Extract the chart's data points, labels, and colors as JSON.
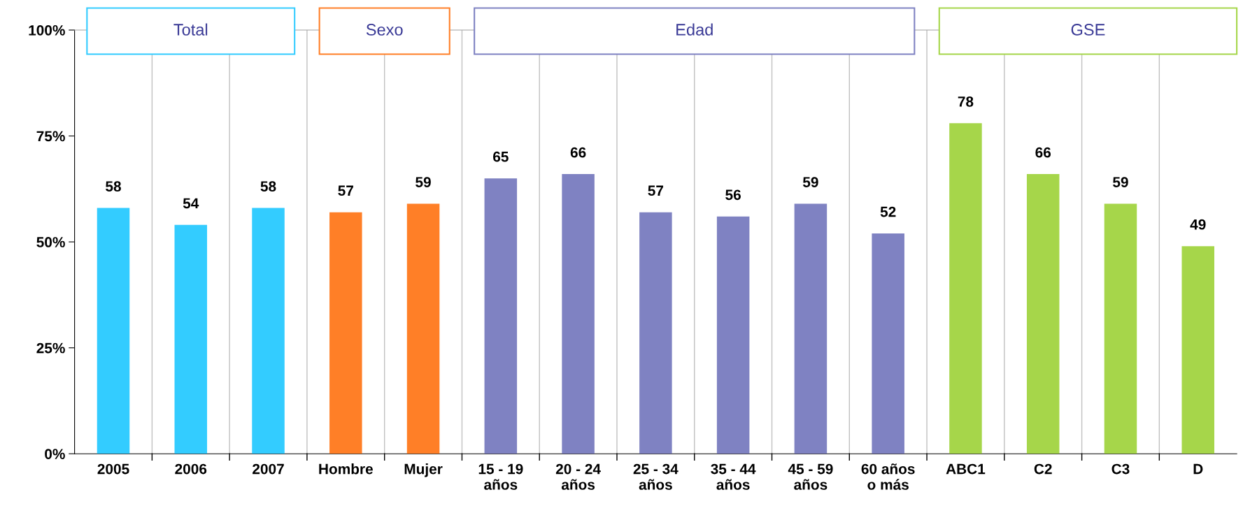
{
  "chart_data": {
    "type": "bar",
    "categories": [
      "2005",
      "2006",
      "2007",
      "Hombre",
      "Mujer",
      "15 - 19\naños",
      "20 - 24\naños",
      "25 - 34\naños",
      "35 - 44\naños",
      "45 - 59\naños",
      "60 años\no más",
      "ABC1",
      "C2",
      "C3",
      "D"
    ],
    "values": [
      58,
      54,
      58,
      57,
      59,
      65,
      66,
      57,
      56,
      59,
      52,
      78,
      66,
      59,
      49
    ],
    "colors": [
      "#33ccff",
      "#33ccff",
      "#33ccff",
      "#ff7f27",
      "#ff7f27",
      "#7f82c2",
      "#7f82c2",
      "#7f82c2",
      "#7f82c2",
      "#7f82c2",
      "#7f82c2",
      "#a6d64a",
      "#a6d64a",
      "#a6d64a",
      "#a6d64a"
    ],
    "annotations": [
      "Total",
      "Sexo",
      "Edad",
      "GSE"
    ],
    "ylim": [
      0,
      100
    ],
    "yticks": [
      {
        "value": 0,
        "label": "0%"
      },
      {
        "value": 25,
        "label": "25%"
      },
      {
        "value": 50,
        "label": "50%"
      },
      {
        "value": 75,
        "label": "75%"
      },
      {
        "value": 100,
        "label": "100%"
      }
    ],
    "grid": "x",
    "data_labels": true
  }
}
